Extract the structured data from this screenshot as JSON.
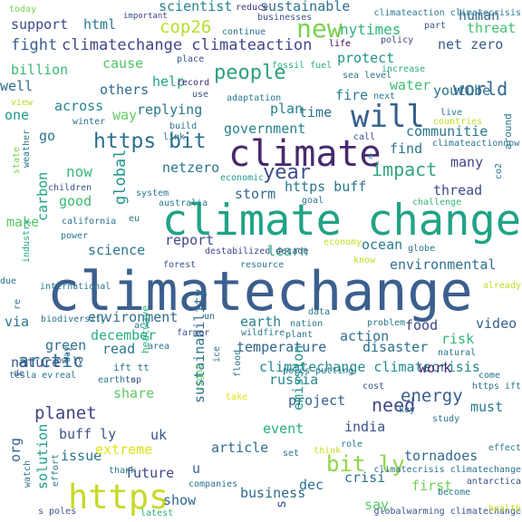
{
  "words": [
    {
      "text": "climatechange",
      "color": "#3b5f8e"
    },
    {
      "text": "climate change",
      "color": "#21a386"
    },
    {
      "text": "climate",
      "color": "#472a6e"
    },
    {
      "text": "https",
      "color": "#c8d92a"
    },
    {
      "text": "will",
      "color": "#34618d"
    },
    {
      "text": "new",
      "color": "#7ad151"
    },
    {
      "text": "https bit",
      "color": "#2b6f8e"
    },
    {
      "text": "bit ly",
      "color": "#8fd744"
    },
    {
      "text": "people",
      "color": "#2aa07e"
    },
    {
      "text": "year",
      "color": "#3c4e8a"
    },
    {
      "text": "impact",
      "color": "#32a57e"
    },
    {
      "text": "need",
      "color": "#3e4989"
    },
    {
      "text": "world",
      "color": "#31688e"
    },
    {
      "text": "energy",
      "color": "#355d8d"
    },
    {
      "text": "planet",
      "color": "#414487"
    },
    {
      "text": "arctic",
      "color": "#2c738e"
    },
    {
      "text": "cop26",
      "color": "#b5de2b"
    },
    {
      "text": "fight",
      "color": "#34608d"
    },
    {
      "text": "climatechange climateaction",
      "color": "#3f4788"
    },
    {
      "text": "sustainable",
      "color": "#2d708e"
    },
    {
      "text": "scientist",
      "color": "#25838e"
    },
    {
      "text": "nytimes",
      "color": "#2fb47c"
    },
    {
      "text": "net zero",
      "color": "#38598c"
    },
    {
      "text": "human",
      "color": "#31688e"
    },
    {
      "text": "threat",
      "color": "#44bf70"
    },
    {
      "text": "support",
      "color": "#3e4989"
    },
    {
      "text": "html",
      "color": "#2a788e"
    },
    {
      "text": "protect",
      "color": "#21918c"
    },
    {
      "text": "water",
      "color": "#3fbc73"
    },
    {
      "text": "youtube",
      "color": "#2c728e"
    },
    {
      "text": "cause",
      "color": "#52c569"
    },
    {
      "text": "billion",
      "color": "#3aba76"
    },
    {
      "text": "well",
      "color": "#31688e"
    },
    {
      "text": "help",
      "color": "#1fa287"
    },
    {
      "text": "others",
      "color": "#31688e"
    },
    {
      "text": "across",
      "color": "#25848e"
    },
    {
      "text": "replying",
      "color": "#29788e"
    },
    {
      "text": "one",
      "color": "#1e9b8a"
    },
    {
      "text": "way",
      "color": "#63cb5f"
    },
    {
      "text": "plan",
      "color": "#26828e"
    },
    {
      "text": "time",
      "color": "#2c718e"
    },
    {
      "text": "fire",
      "color": "#287c8e"
    },
    {
      "text": "communitie",
      "color": "#2a768e"
    },
    {
      "text": "government",
      "color": "#26828e"
    },
    {
      "text": "go",
      "color": "#2c718e"
    },
    {
      "text": "find",
      "color": "#2b748e"
    },
    {
      "text": "global",
      "color": "#1f948c"
    },
    {
      "text": "netzero",
      "color": "#2a778e"
    },
    {
      "text": "https buff",
      "color": "#2b758e"
    },
    {
      "text": "carbon",
      "color": "#1fa188"
    },
    {
      "text": "now",
      "color": "#37b878"
    },
    {
      "text": "many",
      "color": "#414487"
    },
    {
      "text": "good",
      "color": "#3bbb75"
    },
    {
      "text": "storm",
      "color": "#306a8e"
    },
    {
      "text": "thread",
      "color": "#3d4d8a"
    },
    {
      "text": "make",
      "color": "#58c765"
    },
    {
      "text": "report",
      "color": "#3f4889"
    },
    {
      "text": "ocean",
      "color": "#287c8e"
    },
    {
      "text": "science",
      "color": "#2a788e"
    },
    {
      "text": "learn",
      "color": "#27ad81"
    },
    {
      "text": "environmental",
      "color": "#2d708e"
    },
    {
      "text": "environment",
      "color": "#2f6c8e"
    },
    {
      "text": "earth",
      "color": "#26828e"
    },
    {
      "text": "via",
      "color": "#2b748e"
    },
    {
      "text": "green",
      "color": "#2e6e8e"
    },
    {
      "text": "food",
      "color": "#3f4788"
    },
    {
      "text": "video",
      "color": "#34618d"
    },
    {
      "text": "action",
      "color": "#2e6f8e"
    },
    {
      "text": "december",
      "color": "#2ab07f"
    },
    {
      "text": "read",
      "color": "#2a768e"
    },
    {
      "text": "temperature",
      "color": "#32658e"
    },
    {
      "text": "disaster",
      "color": "#2c728e"
    },
    {
      "text": "risk",
      "color": "#31b57b"
    },
    {
      "text": "nature",
      "color": "#3b528b"
    },
    {
      "text": "climatechange climatecrisis",
      "color": "#23888e"
    },
    {
      "text": "russia",
      "color": "#25848e"
    },
    {
      "text": "work",
      "color": "#482173"
    },
    {
      "text": "must",
      "color": "#29798e"
    },
    {
      "text": "project",
      "color": "#34618d"
    },
    {
      "text": "share",
      "color": "#5ec962"
    },
    {
      "text": "sustainability",
      "color": "#2d718e"
    },
    {
      "text": "emission",
      "color": "#1f968b"
    },
    {
      "text": "event",
      "color": "#2ab07f"
    },
    {
      "text": "india",
      "color": "#3b528b"
    },
    {
      "text": "uk",
      "color": "#3a548c"
    },
    {
      "text": "org",
      "color": "#33638d"
    },
    {
      "text": "buff ly",
      "color": "#3b528b"
    },
    {
      "text": "issue",
      "color": "#2c738e"
    },
    {
      "text": "extreme",
      "color": "#dfe318"
    },
    {
      "text": "article",
      "color": "#2f6b8e"
    },
    {
      "text": "tornadoes",
      "color": "#31688e"
    },
    {
      "text": "solution",
      "color": "#1f9e89"
    },
    {
      "text": "u",
      "color": "#35608d"
    },
    {
      "text": "future",
      "color": "#3f4788"
    },
    {
      "text": "crisi",
      "color": "#2c728e"
    },
    {
      "text": "dec",
      "color": "#2c718e"
    },
    {
      "text": "first",
      "color": "#75d054"
    },
    {
      "text": "show",
      "color": "#31688e"
    },
    {
      "text": "business",
      "color": "#31688e"
    },
    {
      "text": "s",
      "color": "#3b528b"
    },
    {
      "text": "say",
      "color": "#58c765"
    },
    {
      "text": "today",
      "color": "#7ad151"
    },
    {
      "text": "important",
      "color": "#3f4788"
    },
    {
      "text": "reduce",
      "color": "#46327e"
    },
    {
      "text": "businesses",
      "color": "#3b528b"
    },
    {
      "text": "climateaction climatecrisis",
      "color": "#2a788e"
    },
    {
      "text": "part",
      "color": "#3b528b"
    },
    {
      "text": "policy",
      "color": "#3e4989"
    },
    {
      "text": "life",
      "color": "#440154"
    },
    {
      "text": "continue",
      "color": "#2c728e"
    },
    {
      "text": "place",
      "color": "#3b528b"
    },
    {
      "text": "fossil fuel",
      "color": "#2ab07f"
    },
    {
      "text": "increase",
      "color": "#29af7f"
    },
    {
      "text": "sea level",
      "color": "#2c728e"
    },
    {
      "text": "record",
      "color": "#46327e"
    },
    {
      "text": "use",
      "color": "#3b528b"
    },
    {
      "text": "next",
      "color": "#2a788e"
    },
    {
      "text": "adaptation",
      "color": "#2a788e"
    },
    {
      "text": "view",
      "color": "#b8de29"
    },
    {
      "text": "winter",
      "color": "#2c728e"
    },
    {
      "text": "build",
      "color": "#2a788e"
    },
    {
      "text": "live",
      "color": "#2a788e"
    },
    {
      "text": "countries",
      "color": "#bddf26"
    },
    {
      "text": "climateactionnow",
      "color": "#2c728e"
    },
    {
      "text": "around",
      "color": "#2a788e"
    },
    {
      "text": "state",
      "color": "#7ad151"
    },
    {
      "text": "weather",
      "color": "#2a788e"
    },
    {
      "text": "link",
      "color": "#2c728e"
    },
    {
      "text": "call",
      "color": "#3b528b"
    },
    {
      "text": "e",
      "color": "#2a788e"
    },
    {
      "text": "co2",
      "color": "#2a788e"
    },
    {
      "text": "economic",
      "color": "#1f9e89"
    },
    {
      "text": "children",
      "color": "#3b528b"
    },
    {
      "text": "system",
      "color": "#2a788e"
    },
    {
      "text": "australia",
      "color": "#2a788e"
    },
    {
      "text": "goal",
      "color": "#2a788e"
    },
    {
      "text": "challenge",
      "color": "#35b779"
    },
    {
      "text": "california",
      "color": "#2c728e"
    },
    {
      "text": "eu",
      "color": "#2a788e"
    },
    {
      "text": "power",
      "color": "#2a788e"
    },
    {
      "text": "destabilized decade",
      "color": "#3e4989"
    },
    {
      "text": "economy",
      "color": "#c2df23"
    },
    {
      "text": "globe",
      "color": "#2a788e"
    },
    {
      "text": "industry",
      "color": "#22a884"
    },
    {
      "text": "know",
      "color": "#b8de29"
    },
    {
      "text": "forest",
      "color": "#3b528b"
    },
    {
      "text": "resource",
      "color": "#2c728e"
    },
    {
      "text": "international",
      "color": "#2a788e"
    },
    {
      "text": "due",
      "color": "#2a788e"
    },
    {
      "text": "re",
      "color": "#2a788e"
    },
    {
      "text": "already",
      "color": "#c2df23"
    },
    {
      "text": "data",
      "color": "#2a788e"
    },
    {
      "text": "biodiversity",
      "color": "#2c728e"
    },
    {
      "text": "un",
      "color": "#2c728e"
    },
    {
      "text": "act",
      "color": "#2a788e"
    },
    {
      "text": "nation",
      "color": "#2a788e"
    },
    {
      "text": "problem",
      "color": "#2a788e"
    },
    {
      "text": "wildfire",
      "color": "#2a788e"
    },
    {
      "text": "plant",
      "color": "#2a788e"
    },
    {
      "text": "farmer",
      "color": "#3b528b"
    },
    {
      "text": "natural",
      "color": "#2a788e"
    },
    {
      "text": "heatwave",
      "color": "#2ab07f"
    },
    {
      "text": "area",
      "color": "#2c728e"
    },
    {
      "text": "de",
      "color": "#3b528b"
    },
    {
      "text": "ift tt",
      "color": "#2c728e"
    },
    {
      "text": "day",
      "color": "#2c728e"
    },
    {
      "text": "ice",
      "color": "#2a788e"
    },
    {
      "text": "come",
      "color": "#2c728e"
    },
    {
      "text": "tesla ev",
      "color": "#2c728e"
    },
    {
      "text": "real",
      "color": "#2a788e"
    },
    {
      "text": "ow ly",
      "color": "#3b528b"
    },
    {
      "text": "earth s",
      "color": "#2a788e"
    },
    {
      "text": "top",
      "color": "#3b528b"
    },
    {
      "text": "right",
      "color": "#5ec962"
    },
    {
      "text": "flood",
      "color": "#2a788e"
    },
    {
      "text": "poles putting",
      "color": "#2a788e"
    },
    {
      "text": "cost",
      "color": "#3b528b"
    },
    {
      "text": "https ift",
      "color": "#2c728e"
    },
    {
      "text": "key",
      "color": "#2c728e"
    },
    {
      "text": "study",
      "color": "#2a788e"
    },
    {
      "text": "take",
      "color": "#dfe318"
    },
    {
      "text": "set",
      "color": "#2c728e"
    },
    {
      "text": "think",
      "color": "#c2df23"
    },
    {
      "text": "effect",
      "color": "#2a788e"
    },
    {
      "text": "role",
      "color": "#2a788e"
    },
    {
      "text": "climatecrisis climatechange",
      "color": "#2c728e"
    },
    {
      "text": "watch",
      "color": "#2a788e"
    },
    {
      "text": "thank",
      "color": "#2a788e"
    },
    {
      "text": "effort",
      "color": "#2a788e"
    },
    {
      "text": "companies",
      "color": "#2c728e"
    },
    {
      "text": "antarctica",
      "color": "#3b528b"
    },
    {
      "text": "become",
      "color": "#2a788e"
    },
    {
      "text": "s poles",
      "color": "#3b528b"
    },
    {
      "text": "latest",
      "color": "#2ab07f"
    },
    {
      "text": "globalwarming climatechange",
      "color": "#3b528b"
    },
    {
      "text": "health",
      "color": "#c2df23"
    },
    {
      "text": "la",
      "color": "#2a788e"
    }
  ]
}
